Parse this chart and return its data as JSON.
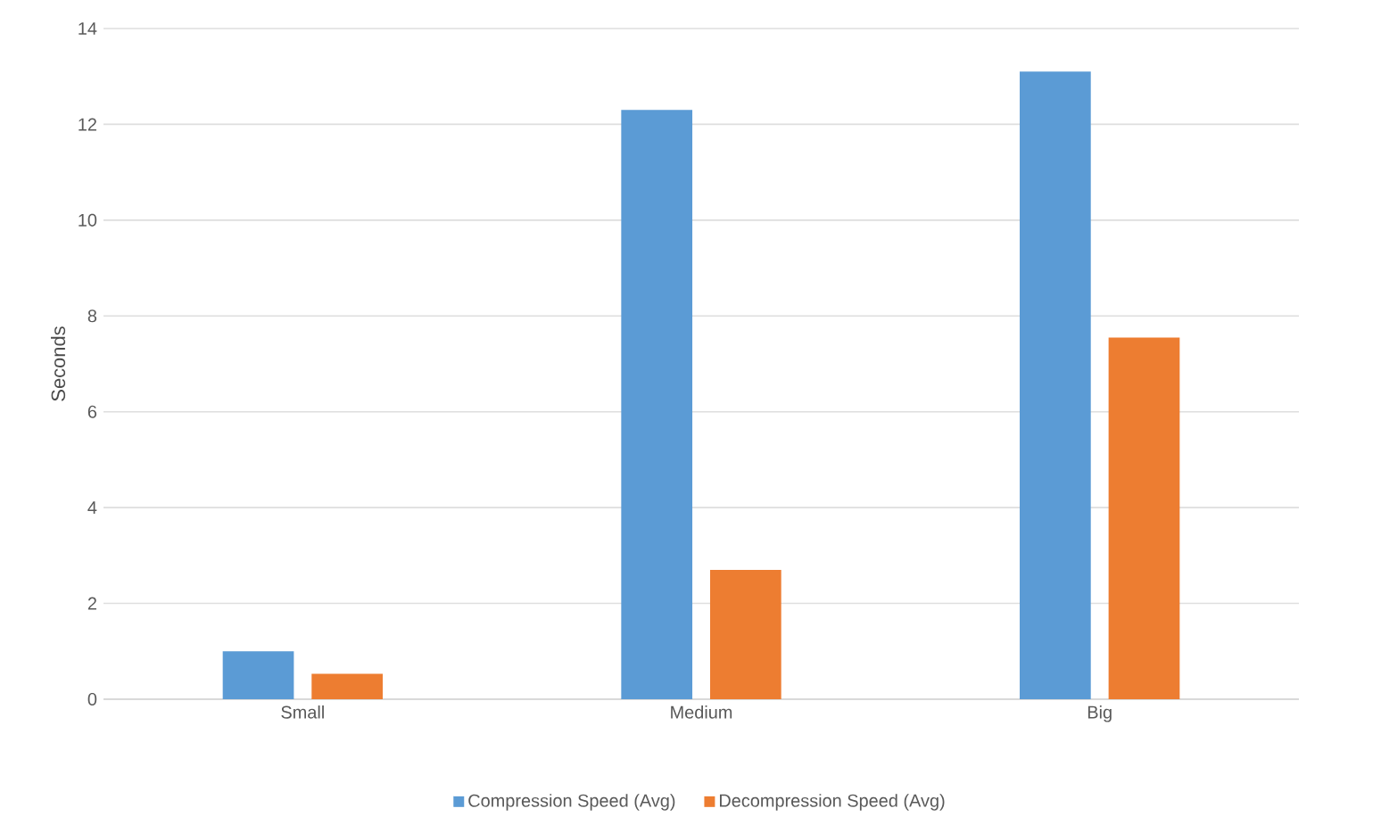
{
  "chart_data": {
    "type": "bar",
    "ylabel": "Seconds",
    "categories": [
      "Small",
      "Medium",
      "Big"
    ],
    "series": [
      {
        "name": "Compression Speed (Avg)",
        "color": "#5b9bd5",
        "values": [
          1.0,
          12.3,
          13.1
        ]
      },
      {
        "name": "Decompression Speed (Avg)",
        "color": "#ed7d31",
        "values": [
          0.53,
          2.7,
          7.55
        ]
      }
    ],
    "ylim": [
      0,
      14
    ],
    "yticks": [
      0,
      2,
      4,
      6,
      8,
      10,
      12,
      14
    ],
    "grid": "y",
    "legend": "bottom"
  }
}
